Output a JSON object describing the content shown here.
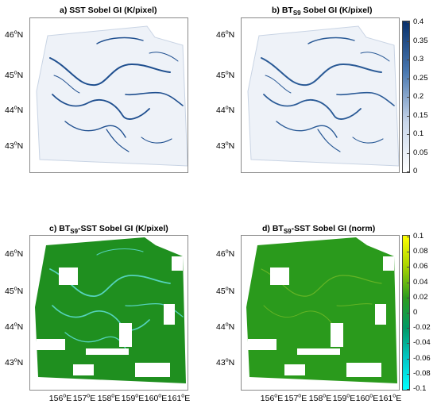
{
  "panels": {
    "a": {
      "title": "a) SST Sobel GI (K/pixel)"
    },
    "b": {
      "title_prefix": "b) BT",
      "title_sub": "S9",
      "title_suffix": " Sobel GI (K/pixel)"
    },
    "c": {
      "title_prefix": "c) BT",
      "title_sub": "S9",
      "title_suffix": "-SST Sobel GI (K/pixel)"
    },
    "d": {
      "title_prefix": "d) BT",
      "title_sub": "S9",
      "title_suffix": "-SST Sobel GI (norm)"
    }
  },
  "lat_labels": [
    {
      "deg": "46",
      "hemi": "N"
    },
    {
      "deg": "45",
      "hemi": "N"
    },
    {
      "deg": "44",
      "hemi": "N"
    },
    {
      "deg": "43",
      "hemi": "N"
    }
  ],
  "lon_labels": [
    {
      "deg": "156",
      "hemi": "E"
    },
    {
      "deg": "157",
      "hemi": "E"
    },
    {
      "deg": "158",
      "hemi": "E"
    },
    {
      "deg": "159",
      "hemi": "E"
    },
    {
      "deg": "160",
      "hemi": "E"
    },
    {
      "deg": "161",
      "hemi": "E"
    }
  ],
  "colorbar_top": {
    "ticks": [
      "0.4",
      "0.35",
      "0.3",
      "0.25",
      "0.2",
      "0.15",
      "0.1",
      "0.05",
      "0"
    ],
    "colors": [
      "#ffffff",
      "#08306b"
    ]
  },
  "colorbar_bottom": {
    "ticks": [
      "0.1",
      "0.08",
      "0.06",
      "0.04",
      "0.02",
      "0",
      "-0.02",
      "-0.04",
      "-0.06",
      "-0.08",
      "-0.1"
    ],
    "colors": [
      "#00ffff",
      "#009900",
      "#ffff00"
    ]
  }
}
